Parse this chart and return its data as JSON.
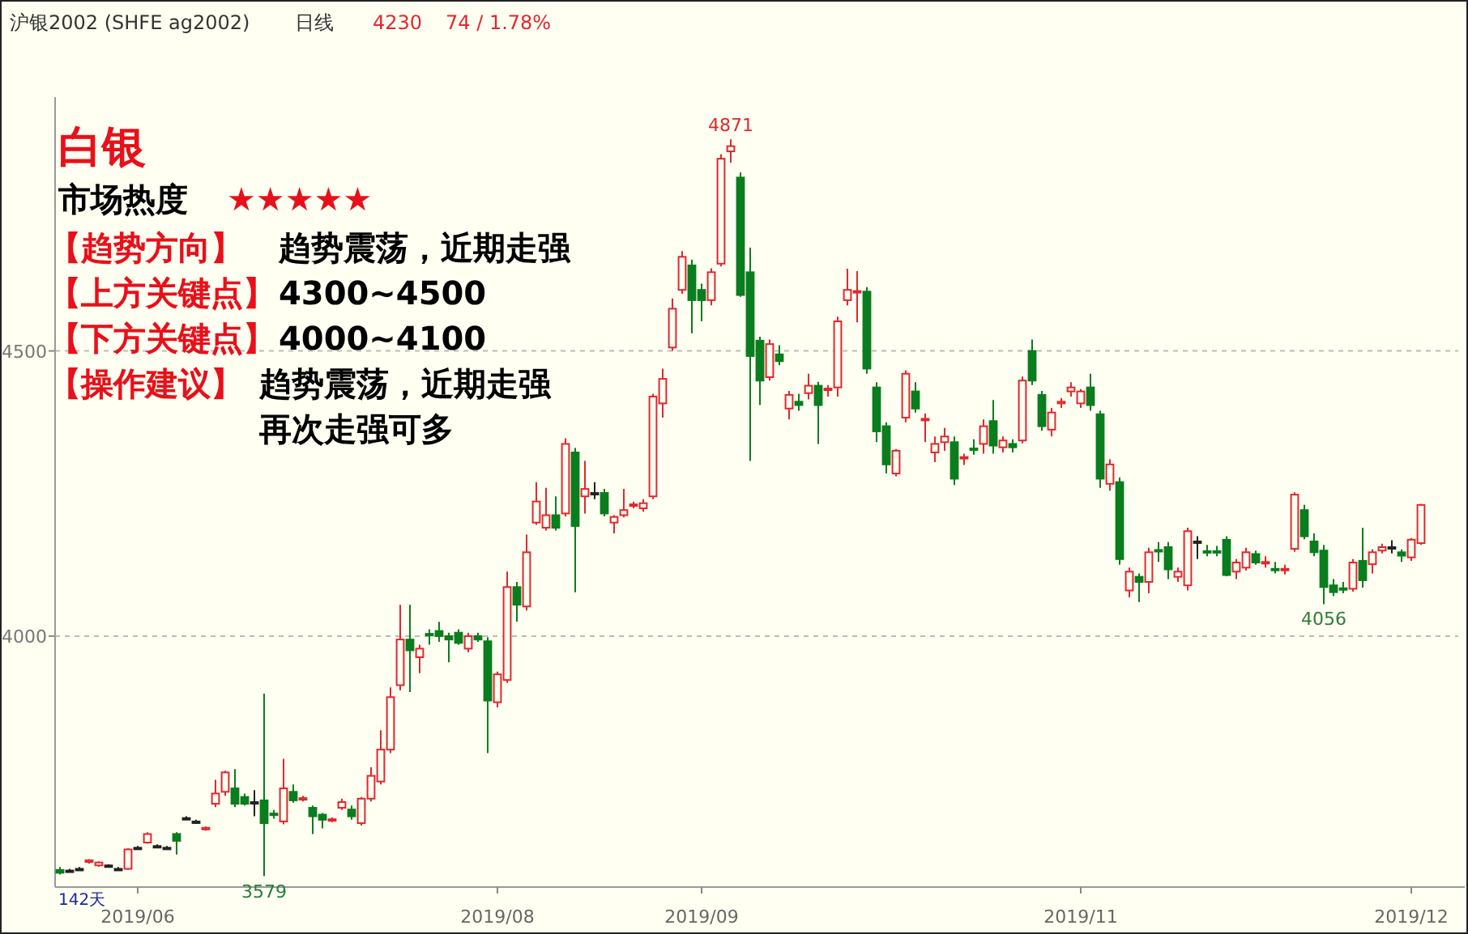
{
  "chart_data": {
    "type": "candlestick",
    "title": "沪银2002 (SHFE ag2002)",
    "subtitle": "日线",
    "ylim": [
      3560,
      4945
    ],
    "yticks": [
      4500,
      4000
    ],
    "grid": "y",
    "categories": [
      null,
      null,
      null,
      null,
      null,
      null,
      null,
      null,
      "2019/06",
      null,
      null,
      null,
      null,
      null,
      null,
      null,
      null,
      null,
      null,
      null,
      null,
      null,
      null,
      null,
      null,
      null,
      null,
      null,
      null,
      null,
      null,
      null,
      null,
      null,
      null,
      null,
      null,
      null,
      null,
      null,
      null,
      null,
      null,
      null,
      null,
      "2019/08",
      null,
      null,
      null,
      null,
      null,
      null,
      null,
      null,
      null,
      null,
      null,
      null,
      null,
      null,
      null,
      null,
      null,
      null,
      null,
      null,
      "2019/09",
      null,
      null,
      null,
      null,
      null,
      null,
      null,
      null,
      null,
      null,
      null,
      null,
      null,
      null,
      null,
      null,
      null,
      null,
      null,
      null,
      null,
      null,
      null,
      null,
      null,
      null,
      null,
      null,
      null,
      null,
      null,
      null,
      null,
      null,
      null,
      null,
      null,
      null,
      "2019/11",
      null,
      null,
      null,
      null,
      null,
      null,
      null,
      null,
      null,
      null,
      null,
      null,
      null,
      null,
      null,
      null,
      null,
      null,
      null,
      null,
      null,
      null,
      null,
      null,
      null,
      null,
      null,
      null,
      null,
      null,
      null,
      null,
      null,
      "2019/12",
      null
    ],
    "ohlc": [
      [
        3590,
        3595,
        3582,
        3585
      ],
      [
        3589,
        3592,
        3586,
        3589
      ],
      [
        3592,
        3595,
        3589,
        3592
      ],
      [
        3604,
        3609,
        3601,
        3607
      ],
      [
        3598,
        3605,
        3596,
        3603
      ],
      [
        3598,
        3600,
        3595,
        3598
      ],
      [
        3592,
        3595,
        3589,
        3592
      ],
      [
        3592,
        3628,
        3590,
        3626
      ],
      [
        3629,
        3632,
        3626,
        3629
      ],
      [
        3638,
        3656,
        3636,
        3653
      ],
      [
        3632,
        3635,
        3629,
        3632
      ],
      [
        3629,
        3632,
        3626,
        3629
      ],
      [
        3653,
        3656,
        3617,
        3641
      ],
      [
        3681,
        3684,
        3678,
        3681
      ],
      [
        3675,
        3678,
        3672,
        3675
      ],
      [
        3661,
        3666,
        3659,
        3664
      ],
      [
        3706,
        3748,
        3700,
        3724
      ],
      [
        3727,
        3764,
        3720,
        3761
      ],
      [
        3733,
        3767,
        3700,
        3706
      ],
      [
        3718,
        3724,
        3703,
        3706
      ],
      [
        3709,
        3730,
        3684,
        3709
      ],
      [
        3712,
        3899,
        3579,
        3672
      ],
      [
        3689,
        3695,
        3680,
        3686
      ],
      [
        3675,
        3785,
        3670,
        3733
      ],
      [
        3727,
        3740,
        3708,
        3712
      ],
      [
        3714,
        3720,
        3710,
        3716
      ],
      [
        3699,
        3703,
        3653,
        3684
      ],
      [
        3687,
        3690,
        3663,
        3678
      ],
      [
        3677,
        3682,
        3674,
        3679
      ],
      [
        3699,
        3715,
        3695,
        3709
      ],
      [
        3696,
        3703,
        3678,
        3684
      ],
      [
        3672,
        3718,
        3668,
        3715
      ],
      [
        3715,
        3770,
        3710,
        3755
      ],
      [
        3745,
        3835,
        3740,
        3801
      ],
      [
        3801,
        3910,
        3795,
        3893
      ],
      [
        3914,
        4055,
        3905,
        3994
      ],
      [
        3994,
        4055,
        3902,
        3975
      ],
      [
        3963,
        3985,
        3935,
        3978
      ],
      [
        4004,
        4012,
        3985,
        4002
      ],
      [
        4009,
        4025,
        3990,
        4000
      ],
      [
        4000,
        4006,
        3954,
        3994
      ],
      [
        4006,
        4012,
        3985,
        3988
      ],
      [
        3978,
        4006,
        3972,
        4000
      ],
      [
        4000,
        4006,
        3990,
        3994
      ],
      [
        3991,
        3998,
        3795,
        3887
      ],
      [
        3884,
        3938,
        3875,
        3933
      ],
      [
        3923,
        4113,
        3918,
        4086
      ],
      [
        4086,
        4095,
        4025,
        4055
      ],
      [
        4052,
        4178,
        4045,
        4147
      ],
      [
        4199,
        4270,
        4195,
        4236
      ],
      [
        4190,
        4260,
        4185,
        4212
      ],
      [
        4212,
        4245,
        4185,
        4190
      ],
      [
        4215,
        4347,
        4210,
        4337
      ],
      [
        4322,
        4330,
        4077,
        4193
      ],
      [
        4245,
        4307,
        4215,
        4258
      ],
      [
        4251,
        4270,
        4240,
        4251
      ],
      [
        4251,
        4258,
        4210,
        4215
      ],
      [
        4199,
        4212,
        4180,
        4209
      ],
      [
        4212,
        4258,
        4208,
        4221
      ],
      [
        4229,
        4236,
        4224,
        4231
      ],
      [
        4224,
        4240,
        4218,
        4233
      ],
      [
        4245,
        4425,
        4240,
        4420
      ],
      [
        4408,
        4469,
        4383,
        4451
      ],
      [
        4506,
        4592,
        4500,
        4574
      ],
      [
        4607,
        4675,
        4600,
        4665
      ],
      [
        4650,
        4660,
        4531,
        4589
      ],
      [
        4607,
        4618,
        4552,
        4589
      ],
      [
        4589,
        4645,
        4580,
        4638
      ],
      [
        4653,
        4845,
        4648,
        4837
      ],
      [
        4850,
        4871,
        4830,
        4859
      ],
      [
        4804,
        4813,
        4595,
        4598
      ],
      [
        4638,
        4681,
        4307,
        4491
      ],
      [
        4518,
        4525,
        4405,
        4448
      ],
      [
        4454,
        4520,
        4448,
        4512
      ],
      [
        4494,
        4510,
        4475,
        4482
      ],
      [
        4399,
        4430,
        4380,
        4423
      ],
      [
        4411,
        4425,
        4395,
        4405
      ],
      [
        4426,
        4460,
        4415,
        4439
      ],
      [
        4439,
        4446,
        4337,
        4405
      ],
      [
        4432,
        4440,
        4420,
        4434
      ],
      [
        4436,
        4560,
        4420,
        4552
      ],
      [
        4589,
        4644,
        4580,
        4607
      ],
      [
        4603,
        4640,
        4550,
        4605
      ],
      [
        4604,
        4612,
        4460,
        4469
      ],
      [
        4436,
        4445,
        4340,
        4359
      ],
      [
        4368,
        4375,
        4285,
        4301
      ],
      [
        4285,
        4328,
        4280,
        4325
      ],
      [
        4383,
        4466,
        4375,
        4460
      ],
      [
        4429,
        4445,
        4392,
        4399
      ],
      [
        4379,
        4390,
        4340,
        4381
      ],
      [
        4322,
        4350,
        4305,
        4337
      ],
      [
        4340,
        4365,
        4325,
        4350
      ],
      [
        4340,
        4350,
        4265,
        4276
      ],
      [
        4312,
        4320,
        4300,
        4314
      ],
      [
        4329,
        4345,
        4318,
        4327
      ],
      [
        4337,
        4380,
        4320,
        4368
      ],
      [
        4377,
        4414,
        4320,
        4334
      ],
      [
        4331,
        4350,
        4322,
        4343
      ],
      [
        4337,
        4345,
        4322,
        4331
      ],
      [
        4343,
        4455,
        4338,
        4448
      ],
      [
        4500,
        4520,
        4440,
        4448
      ],
      [
        4423,
        4430,
        4360,
        4368
      ],
      [
        4362,
        4400,
        4350,
        4392
      ],
      [
        4408,
        4417,
        4400,
        4411
      ],
      [
        4429,
        4445,
        4420,
        4436
      ],
      [
        4408,
        4433,
        4400,
        4429
      ],
      [
        4436,
        4460,
        4395,
        4405
      ],
      [
        4389,
        4395,
        4260,
        4276
      ],
      [
        4267,
        4310,
        4255,
        4301
      ],
      [
        4270,
        4278,
        4125,
        4135
      ],
      [
        4080,
        4120,
        4068,
        4113
      ],
      [
        4104,
        4110,
        4060,
        4095
      ],
      [
        4095,
        4155,
        4075,
        4147
      ],
      [
        4151,
        4165,
        4130,
        4149
      ],
      [
        4156,
        4165,
        4100,
        4117
      ],
      [
        4104,
        4120,
        4095,
        4113
      ],
      [
        4089,
        4190,
        4080,
        4184
      ],
      [
        4166,
        4175,
        4135,
        4166
      ],
      [
        4149,
        4160,
        4140,
        4147
      ],
      [
        4149,
        4158,
        4140,
        4147
      ],
      [
        4169,
        4175,
        4105,
        4107
      ],
      [
        4113,
        4135,
        4100,
        4129
      ],
      [
        4120,
        4155,
        4115,
        4147
      ],
      [
        4144,
        4150,
        4125,
        4129
      ],
      [
        4128,
        4140,
        4120,
        4130
      ],
      [
        4118,
        4130,
        4110,
        4116
      ],
      [
        4116,
        4125,
        4108,
        4118
      ],
      [
        4153,
        4252,
        4148,
        4248
      ],
      [
        4221,
        4230,
        4170,
        4175
      ],
      [
        4166,
        4180,
        4140,
        4147
      ],
      [
        4150,
        4160,
        4056,
        4086
      ],
      [
        4089,
        4100,
        4070,
        4077
      ],
      [
        4084,
        4095,
        4075,
        4082
      ],
      [
        4083,
        4135,
        4078,
        4129
      ],
      [
        4132,
        4190,
        4085,
        4098
      ],
      [
        4126,
        4152,
        4110,
        4147
      ],
      [
        4150,
        4162,
        4145,
        4156
      ],
      [
        4156,
        4168,
        4145,
        4156
      ],
      [
        4147,
        4152,
        4130,
        4141
      ],
      [
        4138,
        4172,
        4132,
        4169
      ],
      [
        4163,
        4232,
        4160,
        4230
      ]
    ],
    "annotations": [
      "4230",
      "74 / 1.78%",
      "白银",
      "市场热度",
      "★★★★★",
      "【趋势方向】",
      "趋势震荡，近期走强",
      "【上方关键点】",
      "4300~4500",
      "【下方关键点】",
      "4000~4100",
      "【操作建议】",
      "趋势震荡，近期走强",
      "再次走强可多",
      "142天",
      {
        "text": "4871",
        "y": 4871
      },
      {
        "text": "3579",
        "y": 3579
      },
      {
        "text": "4056",
        "y": 4056
      }
    ]
  }
}
